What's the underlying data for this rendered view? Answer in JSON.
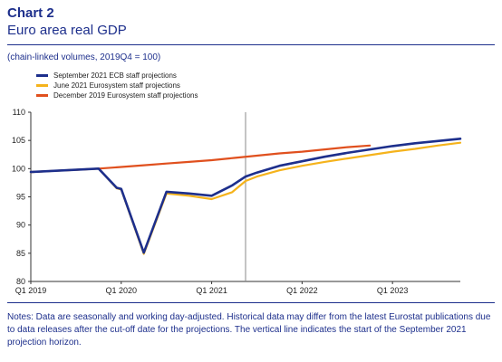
{
  "header": {
    "chart_number": "Chart 2",
    "title": "Euro area real GDP",
    "subtitle": "(chain-linked volumes, 2019Q4 = 100)"
  },
  "notes": "Notes: Data are seasonally and working day-adjusted. Historical data may differ from the latest Eurostat publications due to data releases after the cut-off date for the projections. The vertical line indicates the start of the September 2021 projection horizon.",
  "chart_data": {
    "type": "line",
    "ylim": [
      80,
      110
    ],
    "yticks": [
      80,
      85,
      90,
      95,
      100,
      105,
      110
    ],
    "x_range": [
      0,
      19
    ],
    "xticks": [
      {
        "x": 0,
        "label": "Q1 2019"
      },
      {
        "x": 4,
        "label": "Q1 2020"
      },
      {
        "x": 8,
        "label": "Q1 2021"
      },
      {
        "x": 12,
        "label": "Q1 2022"
      },
      {
        "x": 16,
        "label": "Q1 2023"
      }
    ],
    "projection_start_x": 9.5,
    "series": [
      {
        "name": "December 2019 Eurosystem staff projections",
        "color": "#e0501e",
        "x": [
          0,
          1,
          2,
          3,
          4,
          5,
          6,
          7,
          8,
          9,
          10,
          11,
          12,
          13,
          14,
          15
        ],
        "values": [
          99.4,
          99.6,
          99.8,
          100.0,
          100.3,
          100.6,
          100.9,
          101.2,
          101.5,
          101.9,
          102.3,
          102.7,
          103.0,
          103.4,
          103.8,
          104.1
        ]
      },
      {
        "name": "June 2021 Eurosystem staff projections",
        "color": "#f5b31c",
        "x": [
          0,
          1,
          2,
          3,
          3.8,
          4,
          5,
          6,
          7,
          8,
          8.9,
          9.5,
          10,
          11,
          12,
          13,
          14,
          15,
          16,
          17,
          18,
          19
        ],
        "values": [
          99.4,
          99.6,
          99.8,
          100.0,
          96.5,
          96.3,
          84.9,
          95.6,
          95.2,
          94.6,
          95.8,
          97.8,
          98.6,
          99.7,
          100.5,
          101.2,
          101.8,
          102.4,
          103.0,
          103.5,
          104.1,
          104.6
        ]
      },
      {
        "name": "September 2021 ECB staff projections",
        "color": "#1d2f8c",
        "x": [
          0,
          1,
          2,
          3,
          3.8,
          4,
          5,
          6,
          7,
          8,
          8.9,
          9.5,
          10,
          11,
          12,
          13,
          14,
          15,
          16,
          17,
          18,
          19
        ],
        "values": [
          99.4,
          99.6,
          99.8,
          100.0,
          96.6,
          96.4,
          85.1,
          95.9,
          95.6,
          95.2,
          97.0,
          98.6,
          99.3,
          100.5,
          101.3,
          102.1,
          102.8,
          103.4,
          104.0,
          104.5,
          104.9,
          105.3
        ]
      }
    ],
    "legend_order": [
      "September 2021 ECB staff projections",
      "June 2021 Eurosystem staff projections",
      "December 2019 Eurosystem staff projections"
    ],
    "legend_placement": "top-left",
    "grid": false
  }
}
